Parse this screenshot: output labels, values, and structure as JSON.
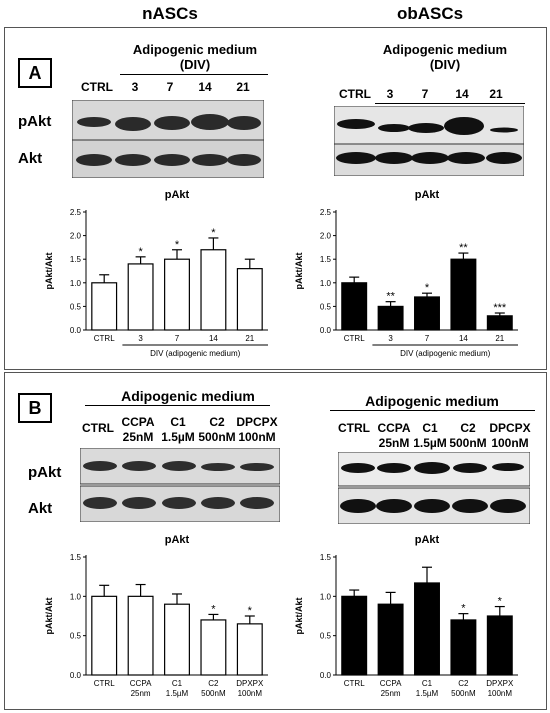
{
  "header": {
    "left_title": "nASCs",
    "right_title": "obASCs"
  },
  "panel_a": {
    "letter": "A",
    "left": {
      "medium_line1": "Adipogenic medium",
      "medium_line2": "(DIV)",
      "lanes": [
        "CTRL",
        "3",
        "7",
        "14",
        "21"
      ],
      "row_labels": [
        "pAkt",
        "Akt"
      ]
    },
    "right": {
      "medium_line1": "Adipogenic medium",
      "medium_line2": "(DIV)",
      "lanes": [
        "CTRL",
        "3",
        "7",
        "14",
        "21"
      ]
    }
  },
  "panel_b": {
    "letter": "B",
    "left": {
      "medium": "Adipogenic medium",
      "lanes_line1": [
        "CTRL",
        "CCPA",
        "C1",
        "C2",
        "DPCPX"
      ],
      "lanes_line2": [
        "",
        "25nM",
        "1.5µM",
        "500nM",
        "100nM"
      ],
      "row_labels": [
        "pAkt",
        "Akt"
      ]
    },
    "right": {
      "medium": "Adipogenic medium",
      "lanes_line1": [
        "CTRL",
        "CCPA",
        "C1",
        "C2",
        "DPCPX"
      ],
      "lanes_line2": [
        "",
        "25nM",
        "1.5µM",
        "500nM",
        "100nM"
      ]
    }
  },
  "chart_data": [
    {
      "type": "bar",
      "title": "pAkt",
      "ylabel": "pAkt/Akt",
      "xlabel": "DIV (adipogenic medium)",
      "categories": [
        "CTRL",
        "3",
        "7",
        "14",
        "21"
      ],
      "cat_line2": [
        "",
        "",
        "",
        "",
        ""
      ],
      "values": [
        1.0,
        1.4,
        1.5,
        1.7,
        1.3
      ],
      "errors": [
        0.17,
        0.15,
        0.2,
        0.25,
        0.2
      ],
      "annotations": [
        "",
        "*",
        "*",
        "*",
        ""
      ],
      "ylim": [
        0,
        2.5
      ],
      "yticks": [
        "0.0",
        "0.5",
        "1.0",
        "1.5",
        "2.0",
        "2.5"
      ],
      "fill": "#ffffff"
    },
    {
      "type": "bar",
      "title": "pAkt",
      "ylabel": "pAkt/Akt",
      "xlabel": "DIV (adipogenic medium)",
      "categories": [
        "CTRL",
        "3",
        "7",
        "14",
        "21"
      ],
      "cat_line2": [
        "",
        "",
        "",
        "",
        ""
      ],
      "values": [
        1.0,
        0.5,
        0.7,
        1.5,
        0.3
      ],
      "errors": [
        0.12,
        0.1,
        0.08,
        0.13,
        0.06
      ],
      "annotations": [
        "",
        "**",
        "*",
        "**",
        "***"
      ],
      "ylim": [
        0,
        2.5
      ],
      "yticks": [
        "0.0",
        "0.5",
        "1.0",
        "1.5",
        "2.0",
        "2.5"
      ],
      "fill": "#000000"
    },
    {
      "type": "bar",
      "title": "pAkt",
      "ylabel": "pAkt/Akt",
      "xlabel": "",
      "categories": [
        "CTRL",
        "CCPA",
        "C1",
        "C2",
        "DPXPX"
      ],
      "cat_line2": [
        "",
        "25nm",
        "1.5µM",
        "500nM",
        "100nM"
      ],
      "values": [
        1.0,
        1.0,
        0.9,
        0.7,
        0.65
      ],
      "errors": [
        0.14,
        0.15,
        0.13,
        0.07,
        0.1
      ],
      "annotations": [
        "",
        "",
        "",
        "*",
        "*"
      ],
      "ylim": [
        0,
        1.5
      ],
      "yticks": [
        "0.0",
        "0.5",
        "1.0",
        "1.5"
      ],
      "fill": "#ffffff"
    },
    {
      "type": "bar",
      "title": "pAkt",
      "ylabel": "pAkt/Akt",
      "xlabel": "",
      "categories": [
        "CTRL",
        "CCPA",
        "C1",
        "C2",
        "DPXPX"
      ],
      "cat_line2": [
        "",
        "25nm",
        "1.5µM",
        "500nM",
        "100nM"
      ],
      "values": [
        1.0,
        0.9,
        1.17,
        0.7,
        0.75
      ],
      "errors": [
        0.08,
        0.15,
        0.2,
        0.08,
        0.12
      ],
      "annotations": [
        "",
        "",
        "",
        "*",
        "*"
      ],
      "ylim": [
        0,
        1.5
      ],
      "yticks": [
        "0.0",
        "0.5",
        "1.0",
        "1.5"
      ],
      "fill": "#000000"
    }
  ]
}
